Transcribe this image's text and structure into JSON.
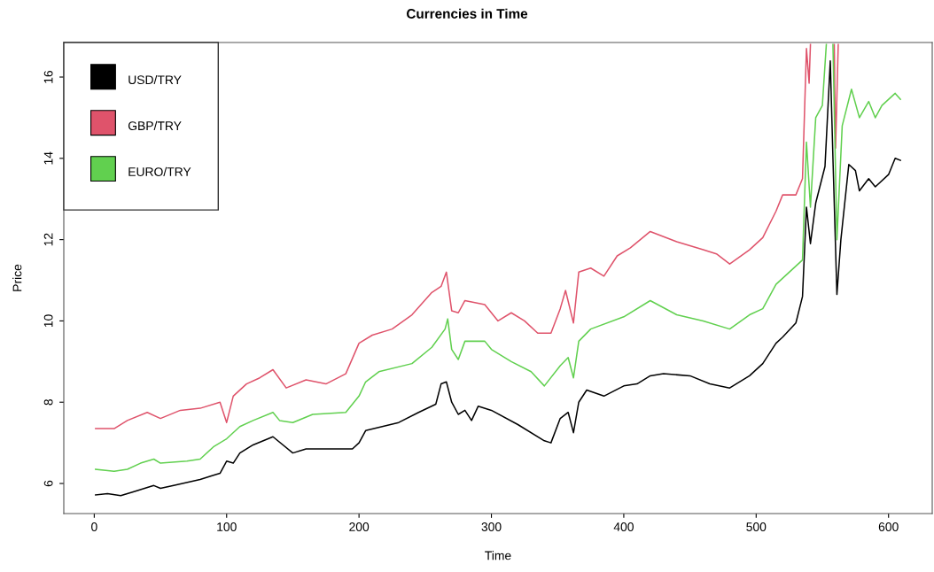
{
  "chart_data": {
    "type": "line",
    "title": "Currencies in Time",
    "xlabel": "Time",
    "ylabel": "Price",
    "xlim": [
      -23,
      633
    ],
    "ylim": [
      5.26,
      16.85
    ],
    "xticks": [
      0,
      100,
      200,
      300,
      400,
      500,
      600
    ],
    "yticks": [
      6,
      8,
      10,
      12,
      14,
      16
    ],
    "grid": false,
    "legend": "top left",
    "line_style": "solid",
    "marker": "none",
    "series": [
      {
        "name": "USD/TRY",
        "color": "#000000",
        "x": [
          1,
          10,
          20,
          30,
          45,
          50,
          60,
          80,
          90,
          95,
          100,
          105,
          110,
          120,
          135,
          150,
          160,
          195,
          200,
          205,
          230,
          245,
          258,
          262,
          266,
          270,
          275,
          280,
          285,
          290,
          300,
          320,
          340,
          345,
          352,
          358,
          362,
          366,
          372,
          385,
          400,
          410,
          420,
          430,
          450,
          465,
          480,
          495,
          505,
          515,
          520,
          530,
          535,
          538,
          541,
          545,
          552,
          556,
          558,
          561,
          564,
          570,
          575,
          578,
          585,
          590,
          600,
          605,
          609
        ],
        "values": [
          5.72,
          5.75,
          5.7,
          5.8,
          5.95,
          5.88,
          5.95,
          6.1,
          6.2,
          6.25,
          6.55,
          6.5,
          6.75,
          6.95,
          7.15,
          6.75,
          6.85,
          6.85,
          7.0,
          7.3,
          7.5,
          7.75,
          7.95,
          8.45,
          8.5,
          8.0,
          7.7,
          7.8,
          7.55,
          7.9,
          7.8,
          7.45,
          7.05,
          7.0,
          7.6,
          7.75,
          7.25,
          8.0,
          8.3,
          8.15,
          8.4,
          8.45,
          8.65,
          8.7,
          8.65,
          8.45,
          8.35,
          8.65,
          8.95,
          9.45,
          9.6,
          9.95,
          10.6,
          12.8,
          11.9,
          12.9,
          13.8,
          16.4,
          14.0,
          10.65,
          12.0,
          13.85,
          13.7,
          13.2,
          13.5,
          13.3,
          13.6,
          14.0,
          13.95
        ]
      },
      {
        "name": "GBP/TRY",
        "color": "#df536b",
        "x": [
          1,
          15,
          25,
          40,
          50,
          65,
          80,
          95,
          100,
          105,
          115,
          125,
          135,
          145,
          160,
          175,
          190,
          200,
          210,
          225,
          240,
          255,
          262,
          266,
          270,
          275,
          280,
          295,
          305,
          315,
          325,
          335,
          345,
          352,
          356,
          362,
          366,
          375,
          385,
          395,
          405,
          420,
          440,
          460,
          470,
          480,
          495,
          505,
          515,
          520,
          530,
          535,
          538,
          540,
          541,
          542,
          559,
          560,
          562
        ],
        "values": [
          7.35,
          7.35,
          7.55,
          7.75,
          7.6,
          7.8,
          7.85,
          8.0,
          7.5,
          8.15,
          8.45,
          8.6,
          8.8,
          8.35,
          8.55,
          8.45,
          8.7,
          9.45,
          9.65,
          9.8,
          10.15,
          10.7,
          10.85,
          11.2,
          10.25,
          10.2,
          10.5,
          10.4,
          10.0,
          10.2,
          10.0,
          9.7,
          9.7,
          10.3,
          10.75,
          9.95,
          11.2,
          11.3,
          11.1,
          11.6,
          11.8,
          12.2,
          11.95,
          11.75,
          11.65,
          11.4,
          11.75,
          12.05,
          12.7,
          13.1,
          13.1,
          13.5,
          16.7,
          15.85,
          16.8,
          null,
          16.8,
          14.25,
          16.8
        ]
      },
      {
        "name": "EURO/TRY",
        "color": "#61d04f",
        "x": [
          1,
          15,
          25,
          35,
          45,
          50,
          70,
          80,
          90,
          100,
          110,
          120,
          135,
          140,
          150,
          165,
          190,
          200,
          205,
          215,
          240,
          255,
          265,
          267,
          270,
          275,
          280,
          295,
          300,
          315,
          330,
          340,
          352,
          358,
          362,
          366,
          375,
          400,
          420,
          440,
          460,
          480,
          495,
          505,
          515,
          525,
          535,
          538,
          541,
          545,
          550,
          553,
          556,
          558,
          561,
          565,
          572,
          578,
          585,
          590,
          595,
          605,
          609
        ],
        "values": [
          6.35,
          6.3,
          6.35,
          6.5,
          6.6,
          6.5,
          6.55,
          6.6,
          6.9,
          7.1,
          7.4,
          7.55,
          7.75,
          7.55,
          7.5,
          7.7,
          7.75,
          8.15,
          8.5,
          8.75,
          8.95,
          9.35,
          9.8,
          10.05,
          9.3,
          9.05,
          9.5,
          9.5,
          9.3,
          9.0,
          8.75,
          8.4,
          8.9,
          9.1,
          8.6,
          9.5,
          9.8,
          10.1,
          10.5,
          10.15,
          10.0,
          9.8,
          10.15,
          10.3,
          10.9,
          11.2,
          11.5,
          14.4,
          12.8,
          15.0,
          15.3,
          16.8,
          null,
          16.8,
          12.0,
          14.8,
          15.7,
          15.0,
          15.4,
          15.0,
          15.3,
          15.6,
          15.45
        ]
      }
    ]
  }
}
